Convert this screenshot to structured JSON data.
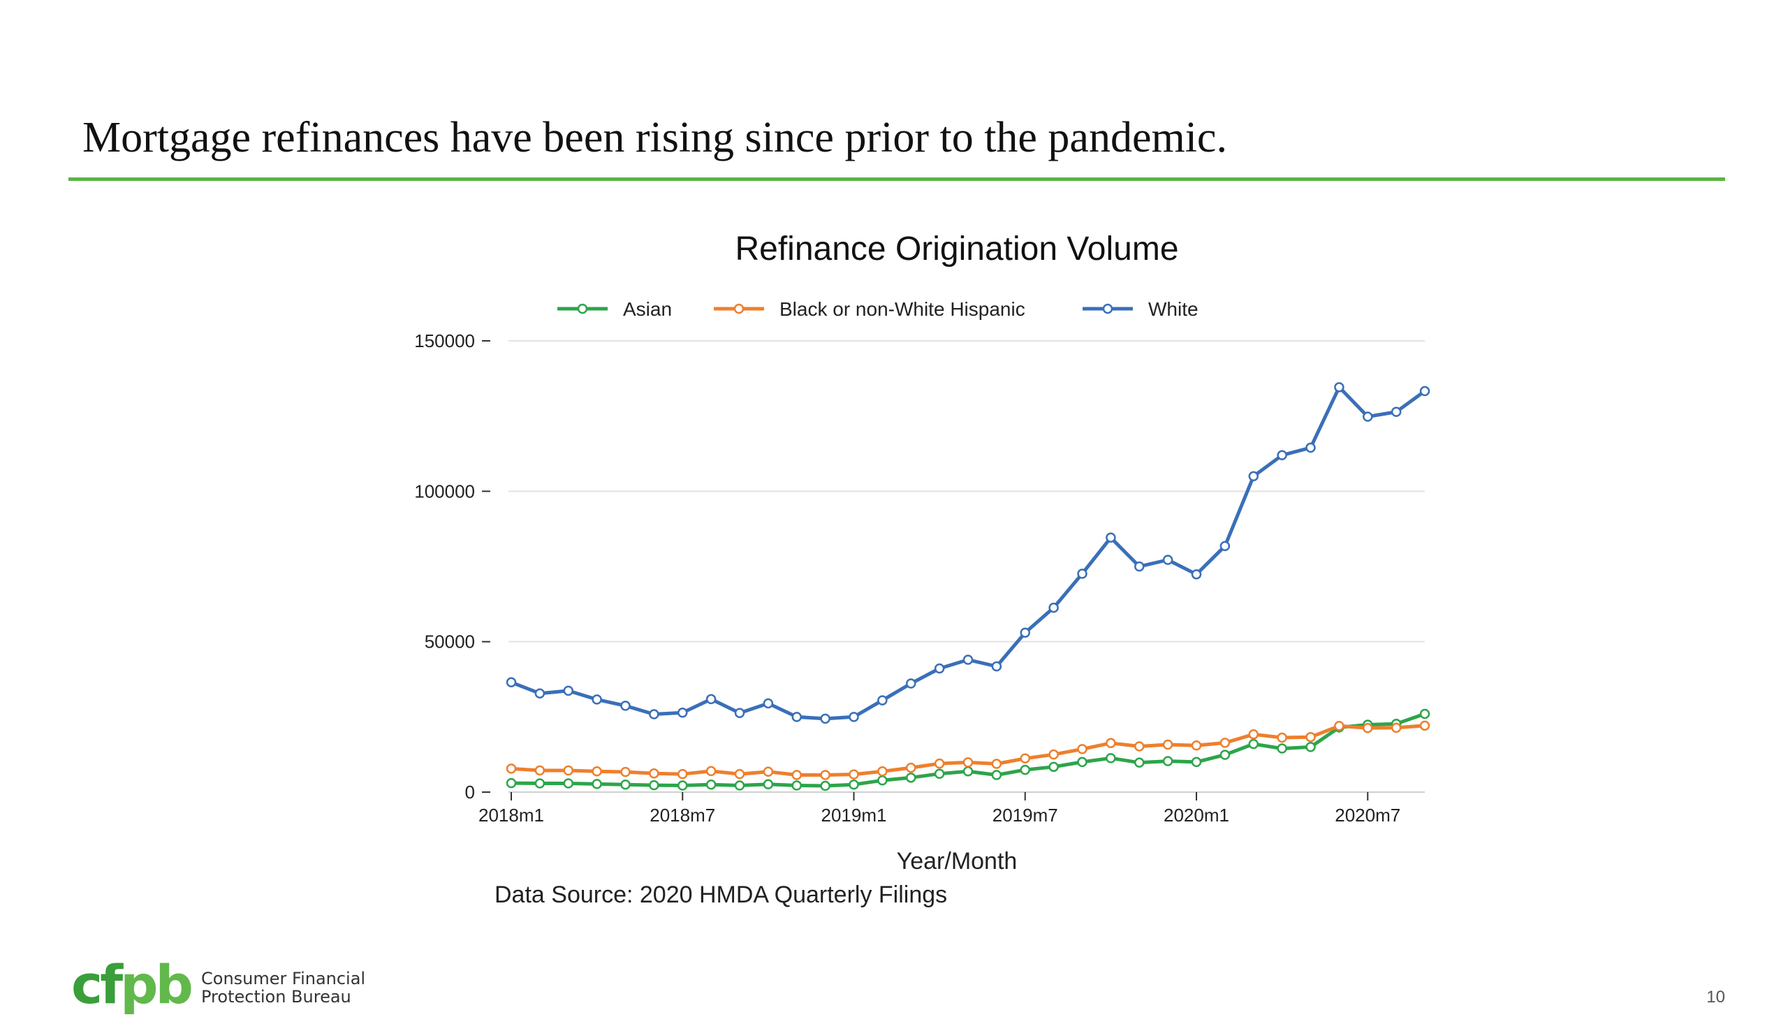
{
  "slide": {
    "title": "Mortgage refinances have been rising since prior to the pandemic.",
    "page_number": "10",
    "accent_color": "#5bb443",
    "source_note": "Data Source: 2020 HMDA Quarterly Filings"
  },
  "logo": {
    "mark": "cfpb",
    "line1": "Consumer Financial",
    "line2": "Protection Bureau",
    "colors": [
      "#3a9e3a",
      "#62b84b"
    ]
  },
  "chart_data": {
    "type": "line",
    "title": "Refinance Origination Volume",
    "xlabel": "Year/Month",
    "ylabel": "",
    "x": [
      "2018m1",
      "2018m2",
      "2018m3",
      "2018m4",
      "2018m5",
      "2018m6",
      "2018m7",
      "2018m8",
      "2018m9",
      "2018m10",
      "2018m11",
      "2018m12",
      "2019m1",
      "2019m2",
      "2019m3",
      "2019m4",
      "2019m5",
      "2019m6",
      "2019m7",
      "2019m8",
      "2019m9",
      "2019m10",
      "2019m11",
      "2019m12",
      "2020m1",
      "2020m2",
      "2020m3",
      "2020m4",
      "2020m5",
      "2020m6",
      "2020m7",
      "2020m8",
      "2020m9"
    ],
    "xticks": [
      "2018m1",
      "2018m7",
      "2019m1",
      "2019m7",
      "2020m1",
      "2020m7"
    ],
    "yticks": [
      0,
      50000,
      100000,
      150000
    ],
    "ylim": [
      0,
      150000
    ],
    "grid": true,
    "legend_position": "top",
    "series": [
      {
        "name": "Asian",
        "color": "#2ca54a",
        "values": [
          3000,
          2900,
          2900,
          2700,
          2500,
          2300,
          2200,
          2500,
          2200,
          2600,
          2200,
          2100,
          2500,
          3900,
          4800,
          6100,
          6900,
          5700,
          7400,
          8400,
          10000,
          11300,
          9800,
          10300,
          10000,
          12400,
          16000,
          14500,
          15000,
          21500,
          22400,
          22700,
          26000
        ]
      },
      {
        "name": "Black or non-White Hispanic",
        "color": "#ee7f2d",
        "values": [
          7800,
          7200,
          7200,
          6900,
          6700,
          6200,
          6000,
          7000,
          6000,
          6800,
          5700,
          5700,
          5900,
          6900,
          8100,
          9500,
          9900,
          9400,
          11200,
          12500,
          14300,
          16300,
          15200,
          15800,
          15500,
          16400,
          19200,
          18100,
          18300,
          22000,
          21300,
          21400,
          22100
        ]
      },
      {
        "name": "White",
        "color": "#3a6fb8",
        "values": [
          36500,
          32800,
          33700,
          30800,
          28700,
          25900,
          26400,
          30900,
          26300,
          29500,
          25000,
          24400,
          25000,
          30500,
          36100,
          41100,
          44000,
          41800,
          53000,
          61300,
          72600,
          84600,
          75000,
          77200,
          72400,
          81800,
          105000,
          112000,
          114500,
          134600,
          124800,
          126400,
          133300
        ]
      }
    ]
  }
}
